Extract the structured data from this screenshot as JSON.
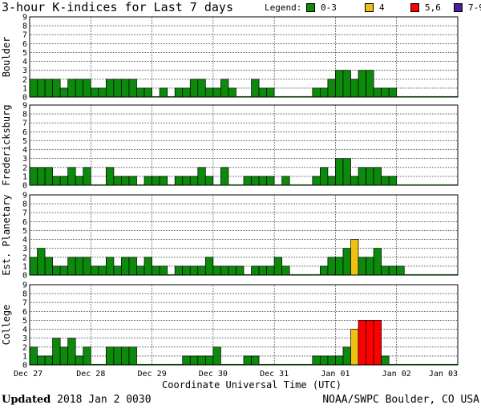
{
  "title": "3-hour K-indices for Last 7 days",
  "legend": {
    "label": "Legend:",
    "items": [
      {
        "label": "0-3",
        "color": "#0b8a0b"
      },
      {
        "label": "4",
        "color": "#f0c010"
      },
      {
        "label": "5,6",
        "color": "#ff0000"
      },
      {
        "label": "7-9",
        "color": "#4b1f99"
      }
    ]
  },
  "footer": {
    "updated_label": "Updated",
    "updated_value": "2018 Jan  2 0030",
    "credit": "NOAA/SWPC Boulder, CO USA"
  },
  "chart_data": {
    "type": "bar",
    "xlabel": "Coordinate Universal Time (UTC)",
    "x_ticks": [
      "Dec 27",
      "Dec 28",
      "Dec 29",
      "Dec 30",
      "Dec 31",
      "Jan 01",
      "Jan 02",
      "Jan 03"
    ],
    "y_ticks": [
      "0",
      "1",
      "2",
      "3",
      "4",
      "5",
      "6",
      "7",
      "8",
      "9"
    ],
    "ylim": [
      0,
      9
    ],
    "bins_per_day": 8,
    "grid": true,
    "color_scale": [
      {
        "range": "0-3",
        "color": "#0b8a0b"
      },
      {
        "range": "4",
        "color": "#f0c010"
      },
      {
        "range": "5,6",
        "color": "#ff0000"
      },
      {
        "range": "7-9",
        "color": "#4b1f99"
      }
    ],
    "panels": [
      {
        "name": "Boulder",
        "values": [
          2,
          2,
          2,
          2,
          1,
          2,
          2,
          2,
          1,
          1,
          2,
          2,
          2,
          2,
          1,
          1,
          0,
          1,
          0,
          1,
          1,
          2,
          2,
          1,
          1,
          2,
          1,
          0,
          0,
          2,
          1,
          1,
          0,
          0,
          0,
          0,
          0,
          1,
          1,
          2,
          3,
          3,
          2,
          3,
          3,
          1,
          1,
          1,
          0,
          0,
          0,
          0,
          0,
          0,
          0,
          0
        ]
      },
      {
        "name": "Fredericksburg",
        "values": [
          2,
          2,
          2,
          1,
          1,
          2,
          1,
          2,
          0,
          0,
          2,
          1,
          1,
          1,
          0,
          1,
          1,
          1,
          0,
          1,
          1,
          1,
          2,
          1,
          0,
          2,
          0,
          0,
          1,
          1,
          1,
          1,
          0,
          1,
          0,
          0,
          0,
          1,
          2,
          1,
          3,
          3,
          1,
          2,
          2,
          2,
          1,
          1,
          0,
          0,
          0,
          0,
          0,
          0,
          0,
          0
        ]
      },
      {
        "name": "Est. Planetary",
        "values": [
          2,
          3,
          2,
          1,
          1,
          2,
          2,
          2,
          1,
          1,
          2,
          1,
          2,
          2,
          1,
          2,
          1,
          1,
          0,
          1,
          1,
          1,
          1,
          2,
          1,
          1,
          1,
          1,
          0,
          1,
          1,
          1,
          2,
          1,
          0,
          0,
          0,
          0,
          1,
          2,
          2,
          3,
          4,
          2,
          2,
          3,
          1,
          1,
          1,
          0,
          0,
          0,
          0,
          0,
          0,
          0
        ]
      },
      {
        "name": "College",
        "values": [
          2,
          1,
          1,
          3,
          2,
          3,
          1,
          2,
          0,
          0,
          2,
          2,
          2,
          2,
          0,
          0,
          0,
          0,
          0,
          0,
          1,
          1,
          1,
          1,
          2,
          0,
          0,
          0,
          1,
          1,
          0,
          0,
          0,
          0,
          0,
          0,
          0,
          1,
          1,
          1,
          1,
          2,
          4,
          5,
          5,
          5,
          1,
          0,
          0,
          0,
          0,
          0,
          0,
          0,
          0,
          0
        ]
      }
    ]
  }
}
